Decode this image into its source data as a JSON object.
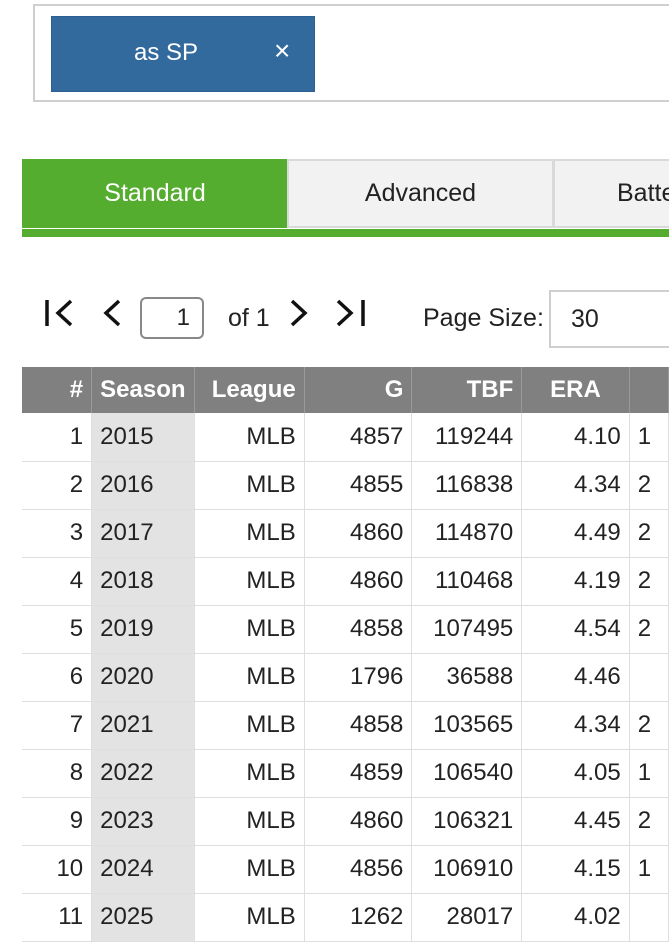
{
  "filter": {
    "chip_label": "as SP",
    "chip_remove": "×"
  },
  "tabs": [
    {
      "label": "Standard",
      "active": true
    },
    {
      "label": "Advanced",
      "active": false
    },
    {
      "label": "Batte",
      "active": false
    }
  ],
  "colors": {
    "accent_green": "#54ad2f",
    "chip_blue": "#336a9e",
    "header_gray": "#808080"
  },
  "pager": {
    "first_icon": "first-page-icon",
    "prev_icon": "prev-page-icon",
    "next_icon": "next-page-icon",
    "last_icon": "last-page-icon",
    "current_page": "1",
    "of_label": "of 1",
    "page_size_label": "Page Size:",
    "page_size_value": "30"
  },
  "table": {
    "headers": {
      "num": "#",
      "season": "Season",
      "league": "League",
      "g": "G",
      "tbf": "TBF",
      "era": "ERA"
    },
    "rows": [
      {
        "num": "1",
        "season": "2015",
        "league": "MLB",
        "g": "4857",
        "tbf": "119244",
        "era": "4.10",
        "extra": "1"
      },
      {
        "num": "2",
        "season": "2016",
        "league": "MLB",
        "g": "4855",
        "tbf": "116838",
        "era": "4.34",
        "extra": "2"
      },
      {
        "num": "3",
        "season": "2017",
        "league": "MLB",
        "g": "4860",
        "tbf": "114870",
        "era": "4.49",
        "extra": "2"
      },
      {
        "num": "4",
        "season": "2018",
        "league": "MLB",
        "g": "4860",
        "tbf": "110468",
        "era": "4.19",
        "extra": "2"
      },
      {
        "num": "5",
        "season": "2019",
        "league": "MLB",
        "g": "4858",
        "tbf": "107495",
        "era": "4.54",
        "extra": "2"
      },
      {
        "num": "6",
        "season": "2020",
        "league": "MLB",
        "g": "1796",
        "tbf": "36588",
        "era": "4.46",
        "extra": ""
      },
      {
        "num": "7",
        "season": "2021",
        "league": "MLB",
        "g": "4858",
        "tbf": "103565",
        "era": "4.34",
        "extra": "2"
      },
      {
        "num": "8",
        "season": "2022",
        "league": "MLB",
        "g": "4859",
        "tbf": "106540",
        "era": "4.05",
        "extra": "1"
      },
      {
        "num": "9",
        "season": "2023",
        "league": "MLB",
        "g": "4860",
        "tbf": "106321",
        "era": "4.45",
        "extra": "2"
      },
      {
        "num": "10",
        "season": "2024",
        "league": "MLB",
        "g": "4856",
        "tbf": "106910",
        "era": "4.15",
        "extra": "1"
      },
      {
        "num": "11",
        "season": "2025",
        "league": "MLB",
        "g": "1262",
        "tbf": "28017",
        "era": "4.02",
        "extra": ""
      }
    ]
  }
}
